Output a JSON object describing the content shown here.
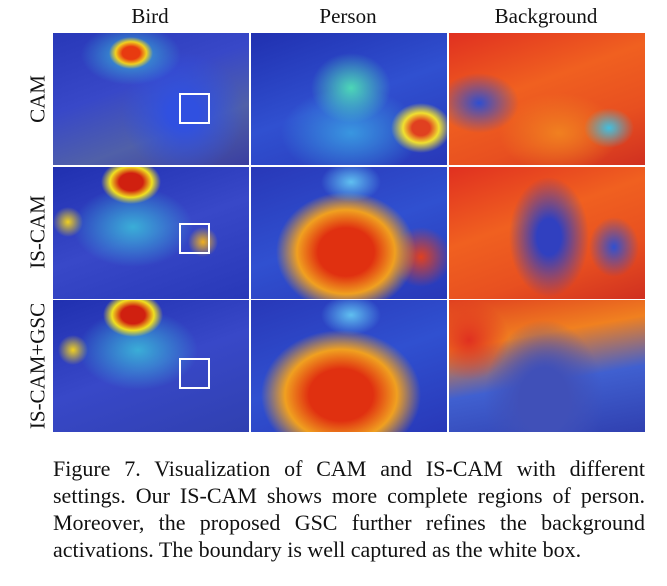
{
  "figure": {
    "columns": [
      "Bird",
      "Person",
      "Background"
    ],
    "rows": [
      "CAM",
      "IS-CAM",
      "IS-CAM+GSC"
    ],
    "caption": "Figure 7. Visualization of CAM and IS-CAM with different settings. Our IS-CAM shows more complete regions of person. Moreover, the proposed GSC further refines the background activations. The boundary is well captured as the white box."
  }
}
